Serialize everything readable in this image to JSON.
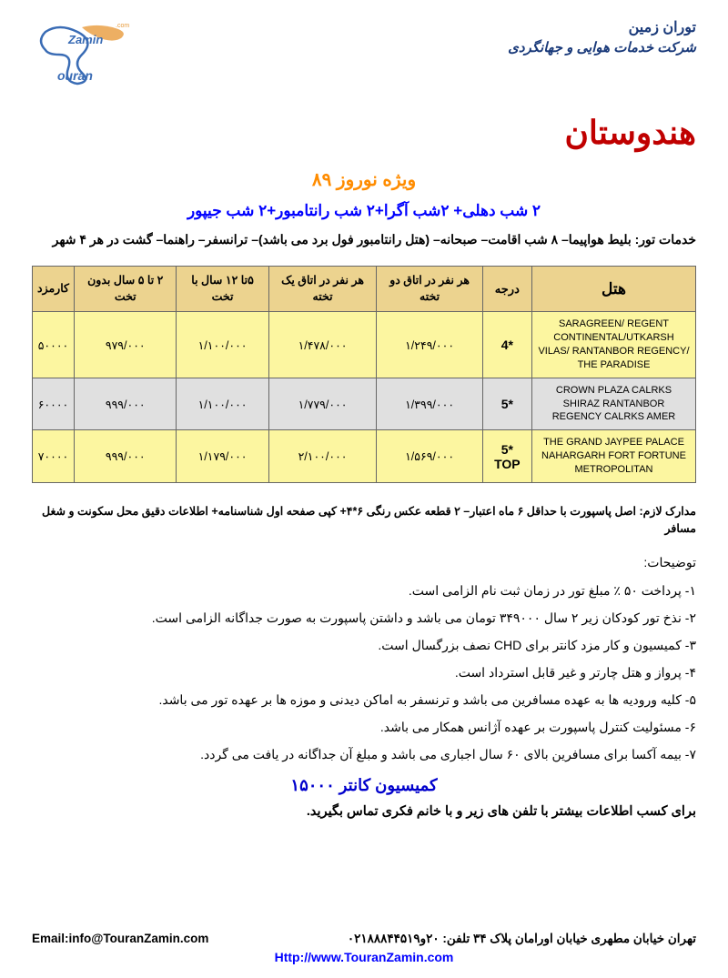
{
  "company": {
    "name": "توران زمین",
    "sub": "شرکت خدمات هوایی و جهانگردی"
  },
  "logo": {
    "text1": "Zamin",
    "text2": "ouran",
    "dotcom": ".com",
    "color_blue": "#3a6cb5",
    "color_orange": "#e89b3c"
  },
  "title": "هندوستان",
  "subtitle": "ویژه نوروز ۸۹",
  "itinerary": "۲ شب دهلی+ ۲شب آگرا+۲ شب رانتامبور+۲ شب جیپور",
  "services": "خدمات تور: بلیط هواپیما– ۸ شب اقامت– صبحانه– (هتل رانتامبور فول برد می باشد)– ترانسفر– راهنما– گشت در هر ۴ شهر",
  "table": {
    "headers": {
      "hotel": "هتل",
      "grade": "درجه",
      "double": "هر نفر در اتاق دو تخته",
      "single": "هر نفر در اتاق یک تخته",
      "child_bed": "۵تا ۱۲ سال با تخت",
      "child_nobed": "۲ تا ۵ سال بدون تخت",
      "commission": "کارمزد"
    },
    "rows": [
      {
        "bg": "row-yellow",
        "hotel": "SARAGREEN/ REGENT CONTINENTAL/UTKARSH VILAS/ RANTANBOR REGENCY/ THE PARADISE",
        "grade": "4*",
        "double": "۱/۲۴۹/۰۰۰",
        "single": "۱/۴۷۸/۰۰۰",
        "child_bed": "۱/۱۰۰/۰۰۰",
        "child_nobed": "۹۷۹/۰۰۰",
        "commission": "۵۰۰۰۰"
      },
      {
        "bg": "row-gray",
        "hotel": "CROWN PLAZA CALRKS SHIRAZ RANTANBOR REGENCY CALRKS AMER",
        "grade": "5*",
        "double": "۱/۳۹۹/۰۰۰",
        "single": "۱/۷۷۹/۰۰۰",
        "child_bed": "۱/۱۰۰/۰۰۰",
        "child_nobed": "۹۹۹/۰۰۰",
        "commission": "۶۰۰۰۰"
      },
      {
        "bg": "row-yellow",
        "hotel": "THE GRAND JAYPEE PALACE NAHARGARH FORT FORTUNE METROPOLITAN",
        "grade": "5* TOP",
        "double": "۱/۵۶۹/۰۰۰",
        "single": "۲/۱۰۰/۰۰۰",
        "child_bed": "۱/۱۷۹/۰۰۰",
        "child_nobed": "۹۹۹/۰۰۰",
        "commission": "۷۰۰۰۰"
      }
    ]
  },
  "docs": "مدارک لازم: اصل پاسپورت با حداقل ۶ ماه اعتبار– ۲ قطعه عکس رنگی ۶*۴+ کپی صفحه اول شناسنامه+ اطلاعات دقیق محل سکونت و شغل مسافر",
  "notes_title": "توضیحات:",
  "notes": [
    "۱- پرداخت ۵۰ ٪ مبلغ تور در زمان ثبت نام الزامی است.",
    "۲- نذخ تور کودکان زیر ۲ سال ۳۴۹۰۰۰ تومان می باشد و داشتن پاسپورت به صورت جداگانه الزامی است.",
    "۳- کمیسیون و کار مزد کانتر برای CHD نصف بزرگسال است.",
    "۴- پرواز و هتل چارتر و غیر قابل استرداد است.",
    "۵- کلیه ورودیه ها به عهده مسافرین می باشد و ترنسفر به اماکن دیدنی و موزه ها بر عهده تور می باشد.",
    "۶- مسئولیت کنترل پاسپورت بر عهده آژانس همکار می باشد.",
    "۷- بیمه آکسا برای مسافرین بالای ۶۰ سال اجباری می باشد و مبلغ آن جداگانه در یافت می گردد."
  ],
  "counter": "کمیسیون کانتر ۱۵۰۰۰",
  "contact": "برای کسب اطلاعات بیشتر با تلفن های زیر و با خانم فکری تماس بگیرید.",
  "footer": {
    "address": "تهران  خیابان مطهری  خیابان اورامان پلاک ۳۴  تلفن: ۲۰و۰۲۱۸۸۸۴۴۵۱۹",
    "email": "Email:info@TouranZamin.com",
    "url": "Http://www.TouranZamin.com"
  },
  "colors": {
    "title": "#c00000",
    "subtitle": "#ff8c00",
    "itinerary": "#0000ff",
    "counter": "#0000cc",
    "link": "#0000ff",
    "th_bg": "#ecd38f",
    "row_yellow": "#fcf6a0",
    "row_gray": "#e0e0e0"
  }
}
